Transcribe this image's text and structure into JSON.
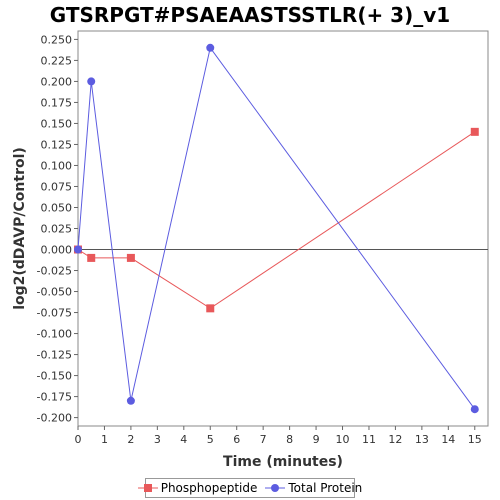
{
  "chart_data": {
    "type": "line",
    "title": "GTSRPGT#PSAEAASTSSTLR(+ 3)_v1",
    "xlabel": "Time (minutes)",
    "ylabel": "log2(dDAVP/Control)",
    "xlim": [
      0,
      15.5
    ],
    "ylim": [
      -0.21,
      0.26
    ],
    "xticks": [
      0,
      1,
      2,
      3,
      4,
      5,
      6,
      7,
      8,
      9,
      10,
      11,
      12,
      13,
      14,
      15
    ],
    "yticks": [
      -0.2,
      -0.175,
      -0.15,
      -0.125,
      -0.1,
      -0.075,
      -0.05,
      -0.025,
      0.0,
      0.025,
      0.05,
      0.075,
      0.1,
      0.125,
      0.15,
      0.175,
      0.2,
      0.225,
      0.25
    ],
    "ytick_labels": [
      "-0.200",
      "-0.175",
      "-0.150",
      "-0.125",
      "-0.100",
      "-0.075",
      "-0.050",
      "-0.025",
      "0.000",
      "0.025",
      "0.050",
      "0.075",
      "0.100",
      "0.125",
      "0.150",
      "0.175",
      "0.200",
      "0.225",
      "0.250"
    ],
    "zero_line": 0,
    "grid": false,
    "legend_position": "bottom",
    "series": [
      {
        "name": "Phosphopeptide",
        "color": "#e8585a",
        "marker": "square",
        "x": [
          0,
          0.5,
          2,
          5,
          15
        ],
        "y": [
          0.0,
          -0.01,
          -0.01,
          -0.07,
          0.14
        ]
      },
      {
        "name": "Total Protein",
        "color": "#5c5ce0",
        "marker": "circle",
        "x": [
          0,
          0.5,
          2,
          5,
          15
        ],
        "y": [
          0.0,
          0.2,
          -0.18,
          0.24,
          -0.19
        ]
      }
    ]
  }
}
